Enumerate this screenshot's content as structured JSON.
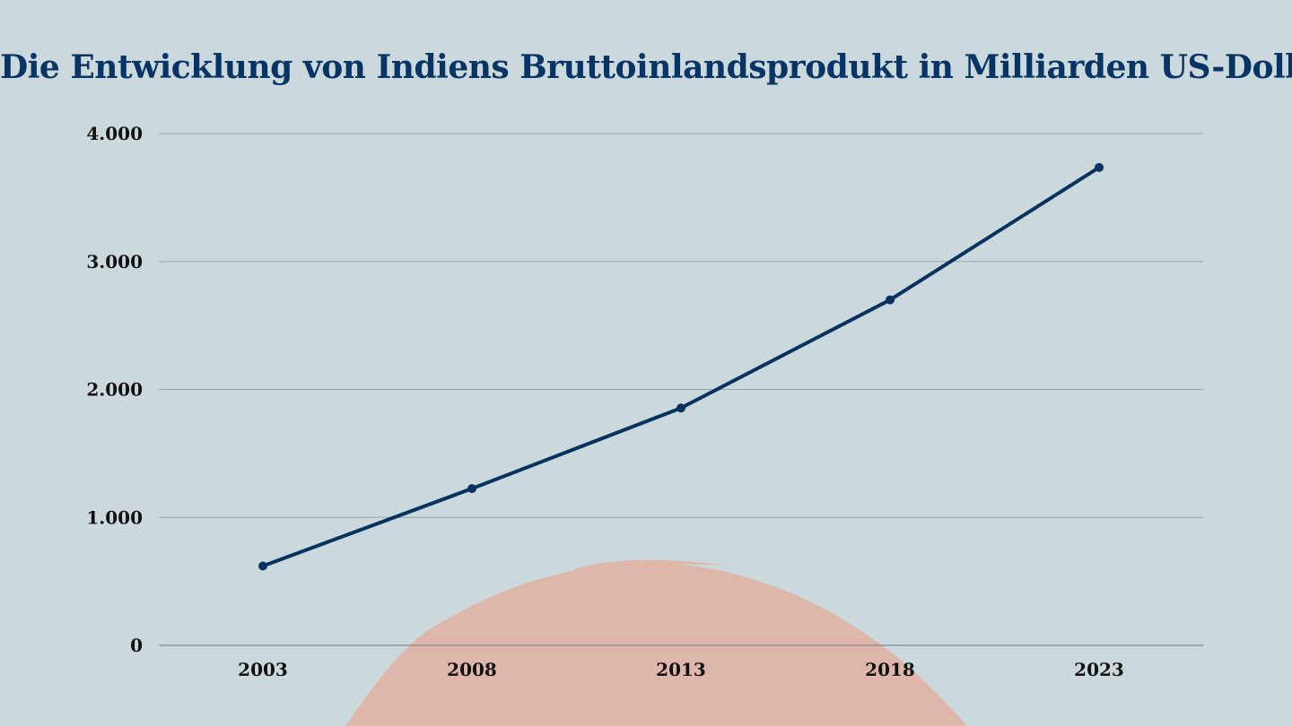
{
  "chart_data": {
    "type": "line",
    "title": "Die Entwicklung von Indiens Bruttoinlandsprodukt in Milliarden US-Dollar",
    "xlabel": "",
    "ylabel": "",
    "categories": [
      "2003",
      "2008",
      "2013",
      "2018",
      "2023"
    ],
    "series": [
      {
        "values": [
          620,
          1225,
          1855,
          2700,
          3735
        ]
      }
    ],
    "ylim": [
      0,
      4000
    ],
    "yticks": [
      0,
      1000,
      2000,
      3000,
      4000
    ],
    "ytick_labels": [
      "0",
      "1.000",
      "2.000",
      "3.000",
      "4.000"
    ],
    "grid": true,
    "legend": "none",
    "colors": {
      "background": "#cbd9dd",
      "line": "#06325f",
      "title": "#063465",
      "gridline": "#9aa7ab",
      "decoration": "#deb6aa"
    }
  }
}
